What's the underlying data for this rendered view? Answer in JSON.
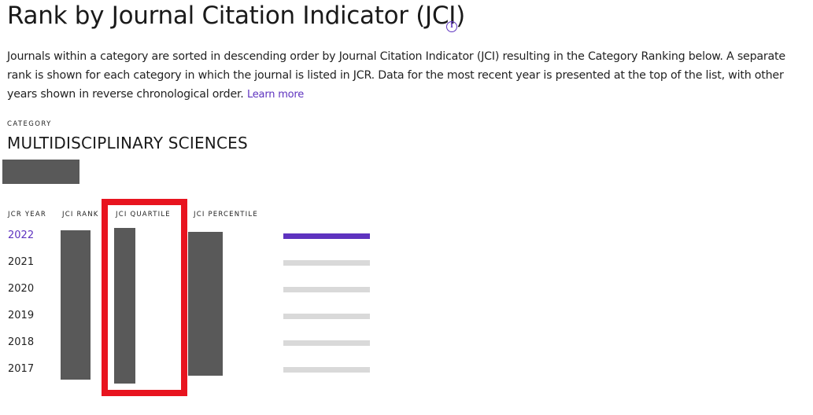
{
  "header": {
    "title": "Rank by Journal Citation Indicator (JCI)",
    "info_icon": "info-icon"
  },
  "description": {
    "text": "Journals within a category are sorted in descending order by Journal Citation Indicator (JCI) resulting in the Category Ranking below. A separate rank is shown for each category in which the journal is listed in JCR. Data for the most recent year is presented at the top of the list, with other years shown in reverse chronological order.",
    "learn_more": "Learn more"
  },
  "category": {
    "label": "CATEGORY",
    "name": "MULTIDISCIPLINARY SCIENCES"
  },
  "table": {
    "headers": {
      "year": "JCR YEAR",
      "rank": "JCI RANK",
      "quartile": "JCI QUARTILE",
      "percentile": "JCI PERCENTILE"
    },
    "rows": [
      {
        "year": "2022",
        "active": true
      },
      {
        "year": "2021",
        "active": false
      },
      {
        "year": "2020",
        "active": false
      },
      {
        "year": "2019",
        "active": false
      },
      {
        "year": "2018",
        "active": false
      },
      {
        "year": "2017",
        "active": false
      }
    ]
  },
  "colors": {
    "accent": "#5e33bf",
    "highlight": "#e8141f",
    "redaction": "#595959",
    "track": "#d9d9d9"
  }
}
